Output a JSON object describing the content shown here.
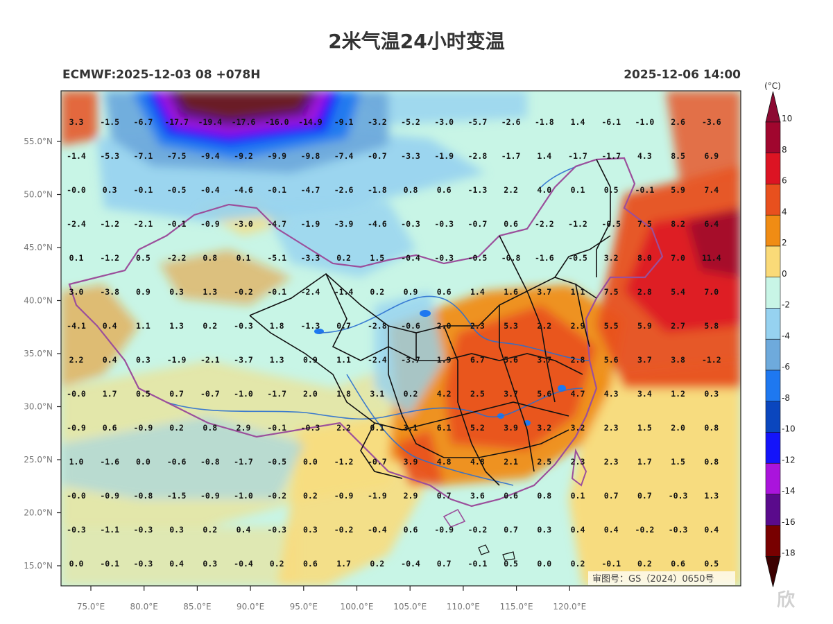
{
  "header": {
    "title": "2米气温24小时变温",
    "model_run": "ECMWF:2025-12-03 08 +078H",
    "valid_time": "2025-12-06 14:00"
  },
  "map": {
    "x_ticks": [
      "75.0°E",
      "80.0°E",
      "85.0°E",
      "90.0°E",
      "95.0°E",
      "100.0°E",
      "105.0°E",
      "110.0°E",
      "115.0°E",
      "120.0°E"
    ],
    "y_ticks": [
      "55.0°N",
      "50.0°N",
      "45.0°N",
      "40.0°N",
      "35.0°N",
      "30.0°N",
      "25.0°N",
      "20.0°N",
      "15.0°N"
    ],
    "approval_no": "审图号：GS（2024）0650号",
    "grid_values": [
      [
        "3.3",
        "-1.5",
        "-6.7",
        "-17.7",
        "-19.4",
        "-17.6",
        "-16.0",
        "-14.9",
        "-9.1",
        "-3.2",
        "-5.2",
        "-3.0",
        "-5.7",
        "-2.6",
        "-1.8",
        "1.4",
        "-6.1",
        "-1.0",
        "2.6",
        "-3.6"
      ],
      [
        "-1.4",
        "-5.3",
        "-7.1",
        "-7.5",
        "-9.4",
        "-9.2",
        "-9.9",
        "-9.8",
        "-7.4",
        "-0.7",
        "-3.3",
        "-1.9",
        "-2.8",
        "-1.7",
        "1.4",
        "-1.7",
        "-1.7",
        "4.3",
        "8.5",
        "6.9"
      ],
      [
        "-0.0",
        "0.3",
        "-0.1",
        "-0.5",
        "-0.4",
        "-4.6",
        "-0.1",
        "-4.7",
        "-2.6",
        "-1.8",
        "0.8",
        "0.6",
        "-1.3",
        "2.2",
        "4.0",
        "0.1",
        "0.5",
        "-0.1",
        "5.9",
        "7.4"
      ],
      [
        "-2.4",
        "-1.2",
        "-2.1",
        "-0.1",
        "-0.9",
        "-3.0",
        "-4.7",
        "-1.9",
        "-3.9",
        "-4.6",
        "-0.3",
        "-0.3",
        "-0.7",
        "0.6",
        "-2.2",
        "-1.2",
        "-0.5",
        "7.5",
        "8.2",
        "6.4"
      ],
      [
        "0.1",
        "-1.2",
        "0.5",
        "-2.2",
        "0.8",
        "0.1",
        "-5.1",
        "-3.3",
        "0.2",
        "1.5",
        "-0.4",
        "-0.3",
        "-0.5",
        "-0.8",
        "-1.6",
        "-0.5",
        "3.2",
        "8.0",
        "7.0",
        "11.4"
      ],
      [
        "3.0",
        "-3.8",
        "0.9",
        "0.3",
        "1.3",
        "-0.2",
        "-0.1",
        "-2.4",
        "-1.4",
        "0.2",
        "0.9",
        "0.6",
        "1.4",
        "1.6",
        "3.7",
        "1.1",
        "7.5",
        "2.8",
        "5.4",
        "7.0"
      ],
      [
        "-4.1",
        "0.4",
        "1.1",
        "1.3",
        "0.2",
        "-0.3",
        "1.8",
        "-1.3",
        "0.7",
        "-2.8",
        "-0.6",
        "2.0",
        "2.3",
        "5.3",
        "2.2",
        "2.9",
        "5.5",
        "5.9",
        "2.7",
        "5.8"
      ],
      [
        "2.2",
        "0.4",
        "0.3",
        "-1.9",
        "-2.1",
        "-3.7",
        "1.3",
        "0.9",
        "1.1",
        "-2.4",
        "-3.7",
        "1.9",
        "6.7",
        "5.6",
        "3.7",
        "2.8",
        "5.6",
        "3.7",
        "3.8",
        "-1.2"
      ],
      [
        "-0.0",
        "1.7",
        "0.5",
        "0.7",
        "-0.7",
        "-1.0",
        "-1.7",
        "2.0",
        "1.8",
        "3.1",
        "0.2",
        "4.2",
        "2.5",
        "3.7",
        "5.6",
        "4.7",
        "4.3",
        "3.4",
        "1.2",
        "0.3"
      ],
      [
        "-0.9",
        "0.6",
        "-0.9",
        "0.2",
        "0.8",
        "2.9",
        "-0.1",
        "-0.3",
        "2.2",
        "0.1",
        "3.1",
        "6.1",
        "5.2",
        "3.9",
        "3.2",
        "3.2",
        "2.3",
        "1.5",
        "2.0",
        "0.8"
      ],
      [
        "1.0",
        "-1.6",
        "0.0",
        "-0.6",
        "-0.8",
        "-1.7",
        "-0.5",
        "0.0",
        "-1.2",
        "-0.7",
        "3.9",
        "4.8",
        "4.8",
        "2.1",
        "2.5",
        "2.3",
        "2.3",
        "1.7",
        "1.5",
        "0.8"
      ],
      [
        "-0.0",
        "-0.9",
        "-0.8",
        "-1.5",
        "-0.9",
        "-1.0",
        "-0.2",
        "0.2",
        "-0.9",
        "-1.9",
        "2.9",
        "0.7",
        "3.6",
        "0.6",
        "0.8",
        "0.1",
        "0.7",
        "0.7",
        "-0.3",
        "1.3"
      ],
      [
        "-0.3",
        "-1.1",
        "-0.3",
        "0.3",
        "0.2",
        "0.4",
        "-0.3",
        "0.3",
        "-0.2",
        "-0.4",
        "0.6",
        "-0.9",
        "-0.2",
        "0.7",
        "0.3",
        "0.4",
        "0.4",
        "-0.2",
        "-0.3",
        "0.4"
      ],
      [
        "0.0",
        "-0.1",
        "-0.3",
        "0.4",
        "0.3",
        "-0.4",
        "0.2",
        "0.6",
        "1.7",
        "0.2",
        "-0.4",
        "0.7",
        "-0.1",
        "0.5",
        "0.0",
        "0.2",
        "-0.1",
        "0.2",
        "0.6",
        "0.5"
      ]
    ]
  },
  "colorbar": {
    "unit": "(°C)",
    "labels": [
      "10",
      "8",
      "6",
      "4",
      "2",
      "0",
      "-2",
      "-4",
      "-6",
      "-8",
      "-10",
      "-12",
      "-14",
      "-16",
      "-18"
    ],
    "colors": [
      "#a0062e",
      "#dc1423",
      "#e8501e",
      "#f08c14",
      "#fada78",
      "#c8f5e6",
      "#96d2f0",
      "#6eaadc",
      "#1e78f0",
      "#0a46be",
      "#1414fa",
      "#aa14dc",
      "#5a0a8c",
      "#780000"
    ],
    "top_color": "#8c0a32",
    "bottom_color": "#3c0000"
  }
}
